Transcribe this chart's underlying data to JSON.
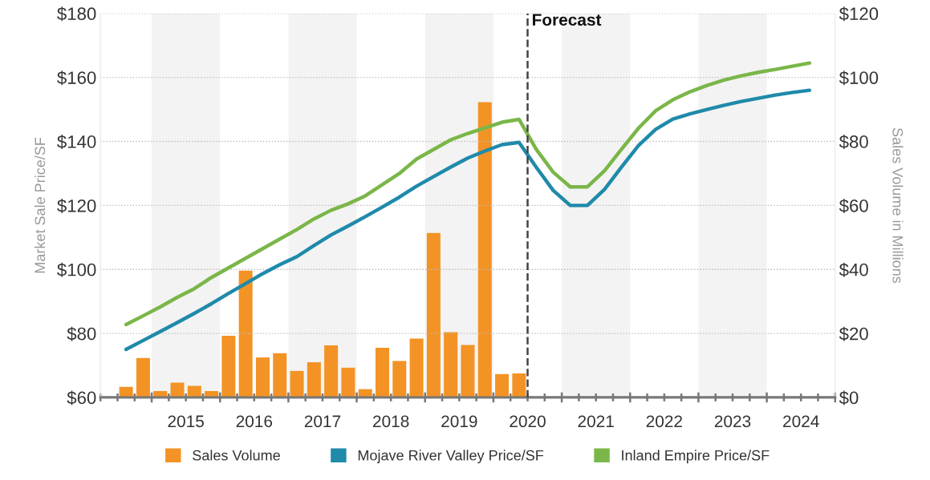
{
  "chart_data": {
    "type": "line",
    "ylabel": "Market Sale Price/SF",
    "y2label": "Sales Volume in Millions",
    "x": [
      2014.625,
      2014.875,
      2015.125,
      2015.375,
      2015.625,
      2015.875,
      2016.125,
      2016.375,
      2016.625,
      2016.875,
      2017.125,
      2017.375,
      2017.625,
      2017.875,
      2018.125,
      2018.375,
      2018.625,
      2018.875,
      2019.125,
      2019.375,
      2019.625,
      2019.875,
      2020.125,
      2020.375,
      2020.625,
      2020.875,
      2021.125,
      2021.375,
      2021.625,
      2021.875,
      2022.125,
      2022.375,
      2022.625,
      2022.875,
      2023.125,
      2023.375,
      2023.625,
      2023.875,
      2024.125,
      2024.375,
      2024.625
    ],
    "series": [
      {
        "name": "Sales Volume",
        "type": "bar",
        "axis": "y2",
        "color": "#f39325",
        "x": [
          2014.625,
          2014.875,
          2015.125,
          2015.375,
          2015.625,
          2015.875,
          2016.125,
          2016.375,
          2016.625,
          2016.875,
          2017.125,
          2017.375,
          2017.625,
          2017.875,
          2018.125,
          2018.375,
          2018.625,
          2018.875,
          2019.125,
          2019.375,
          2019.625,
          2019.875,
          2020.125,
          2020.375
        ],
        "values": [
          3.3,
          12.3,
          2.0,
          4.6,
          3.6,
          2.0,
          19.3,
          39.6,
          12.5,
          13.8,
          8.3,
          11.0,
          16.3,
          9.3,
          2.6,
          15.5,
          11.4,
          18.4,
          51.4,
          20.4,
          16.4,
          92.3,
          7.3,
          7.5
        ]
      },
      {
        "name": "Mojave River Valley Price/SF",
        "color": "#1f8aaa",
        "values": [
          75,
          77.8,
          80.6,
          83.4,
          86.3,
          89.3,
          92.5,
          95.6,
          98.7,
          101.5,
          104,
          107.5,
          110.8,
          113.6,
          116.5,
          119.5,
          122.6,
          126,
          129,
          132,
          134.8,
          137,
          139,
          139.7,
          132,
          124.7,
          120,
          120,
          125,
          132,
          138.8,
          143.8,
          147,
          148.6,
          150,
          151.3,
          152.5,
          153.5,
          154.5,
          155.3,
          156
        ]
      },
      {
        "name": "Inland Empire Price/SF",
        "color": "#7ab648",
        "values": [
          82.8,
          85.5,
          88.3,
          91.3,
          94,
          97.5,
          100.5,
          103.5,
          106.5,
          109.5,
          112.5,
          115.8,
          118.5,
          120.5,
          123,
          126.5,
          130,
          134.5,
          137.5,
          140.5,
          142.5,
          144.2,
          146,
          146.9,
          137.6,
          130.4,
          125.8,
          125.8,
          130.8,
          137.6,
          144.2,
          149.6,
          153,
          155.5,
          157.5,
          159.2,
          160.5,
          161.6,
          162.5,
          163.5,
          164.5
        ]
      }
    ],
    "xlim": [
      2014.25,
      2025
    ],
    "xticks": [
      {
        "value": 2014.25,
        "label": null
      },
      {
        "value": 2014.5,
        "label": null
      },
      {
        "value": 2014.75,
        "label": null
      },
      {
        "value": 2015,
        "label": null
      },
      {
        "value": 2015.25,
        "label": null
      },
      {
        "value": 2015.5,
        "label": "2015"
      },
      {
        "value": 2015.75,
        "label": null
      },
      {
        "value": 2016,
        "label": null
      },
      {
        "value": 2016.25,
        "label": null
      },
      {
        "value": 2016.5,
        "label": "2016"
      },
      {
        "value": 2016.75,
        "label": null
      },
      {
        "value": 2017,
        "label": null
      },
      {
        "value": 2017.25,
        "label": null
      },
      {
        "value": 2017.5,
        "label": "2017"
      },
      {
        "value": 2017.75,
        "label": null
      },
      {
        "value": 2018,
        "label": null
      },
      {
        "value": 2018.25,
        "label": null
      },
      {
        "value": 2018.5,
        "label": "2018"
      },
      {
        "value": 2018.75,
        "label": null
      },
      {
        "value": 2019,
        "label": null
      },
      {
        "value": 2019.25,
        "label": null
      },
      {
        "value": 2019.5,
        "label": "2019"
      },
      {
        "value": 2019.75,
        "label": null
      },
      {
        "value": 2020,
        "label": null
      },
      {
        "value": 2020.25,
        "label": null
      },
      {
        "value": 2020.5,
        "label": "2020"
      },
      {
        "value": 2020.75,
        "label": null
      },
      {
        "value": 2021,
        "label": null
      },
      {
        "value": 2021.25,
        "label": null
      },
      {
        "value": 2021.5,
        "label": "2021"
      },
      {
        "value": 2021.75,
        "label": null
      },
      {
        "value": 2022,
        "label": null
      },
      {
        "value": 2022.25,
        "label": null
      },
      {
        "value": 2022.5,
        "label": "2022"
      },
      {
        "value": 2022.75,
        "label": null
      },
      {
        "value": 2023,
        "label": null
      },
      {
        "value": 2023.25,
        "label": null
      },
      {
        "value": 2023.5,
        "label": "2023"
      },
      {
        "value": 2023.75,
        "label": null
      },
      {
        "value": 2024,
        "label": null
      },
      {
        "value": 2024.25,
        "label": null
      },
      {
        "value": 2024.5,
        "label": "2024"
      },
      {
        "value": 2024.75,
        "label": null
      },
      {
        "value": 2025,
        "label": null
      }
    ],
    "ylim": [
      60,
      180
    ],
    "yticks": [
      {
        "value": 60,
        "label": "$60"
      },
      {
        "value": 80,
        "label": "$80"
      },
      {
        "value": 100,
        "label": "$100"
      },
      {
        "value": 120,
        "label": "$120"
      },
      {
        "value": 140,
        "label": "$140"
      },
      {
        "value": 160,
        "label": "$160"
      },
      {
        "value": 180,
        "label": "$180"
      }
    ],
    "y2lim": [
      0,
      120
    ],
    "y2ticks": [
      {
        "value": 0,
        "label": "$0"
      },
      {
        "value": 20,
        "label": "$20"
      },
      {
        "value": 40,
        "label": "$40"
      },
      {
        "value": 60,
        "label": "$60"
      },
      {
        "value": 80,
        "label": "$80"
      },
      {
        "value": 100,
        "label": "$100"
      },
      {
        "value": 120,
        "label": "$120"
      }
    ],
    "ref_lines": [
      {
        "axis": "x",
        "value": 2020.5,
        "label": "Forecast",
        "color": "#444444",
        "line_style": "dashed"
      }
    ],
    "bands": [
      {
        "axis": "x",
        "from": 2015,
        "to": 2016,
        "color": "#f3f3f3"
      },
      {
        "axis": "x",
        "from": 2017,
        "to": 2018,
        "color": "#f3f3f3"
      },
      {
        "axis": "x",
        "from": 2019,
        "to": 2020,
        "color": "#f3f3f3"
      },
      {
        "axis": "x",
        "from": 2021,
        "to": 2022,
        "color": "#f3f3f3"
      },
      {
        "axis": "x",
        "from": 2023,
        "to": 2024,
        "color": "#f3f3f3"
      }
    ],
    "grid": "y",
    "legend": "bottom",
    "marker": "none",
    "line_style": "solid"
  }
}
